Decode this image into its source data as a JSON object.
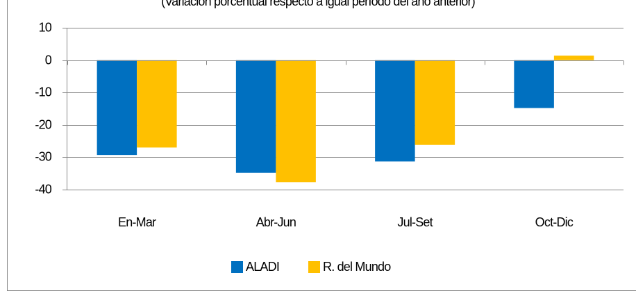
{
  "chart_data": {
    "type": "bar",
    "subtitle": "(Variación porcentual respecto a igual período del año anterior)",
    "categories": [
      "En-Mar",
      "Abr-Jun",
      "Jul-Set",
      "Oct-Dic"
    ],
    "series": [
      {
        "name": "ALADI",
        "color": "#0070c0",
        "values": [
          -29.3,
          -34.8,
          -31.3,
          -14.8
        ]
      },
      {
        "name": "R. del Mundo",
        "color": "#ffc000",
        "values": [
          -27.0,
          -37.7,
          -26.2,
          1.4
        ]
      }
    ],
    "ylim": [
      -40,
      10
    ],
    "yticks": [
      -40,
      -30,
      -20,
      -10,
      0,
      10
    ],
    "grid": true,
    "legend": "bottom"
  }
}
